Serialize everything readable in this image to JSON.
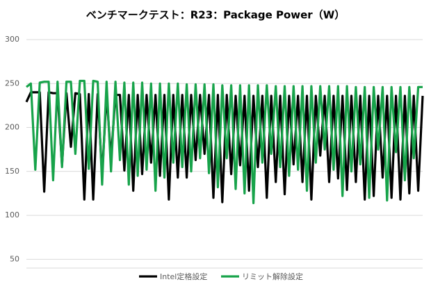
{
  "chart_data": {
    "type": "line",
    "title": "ベンチマークテスト：R23：Package Power（W）",
    "categories": [
      null,
      null,
      null,
      null,
      null,
      null,
      null,
      null,
      null,
      null,
      null,
      null,
      null,
      null,
      null,
      null,
      null,
      null,
      null,
      null,
      null,
      null,
      null,
      null,
      null,
      null,
      null,
      null,
      null,
      null,
      null,
      null,
      null,
      null,
      null,
      null,
      null,
      null,
      null,
      null,
      null,
      null,
      null,
      null,
      null,
      null,
      null,
      null,
      null,
      null,
      null,
      null,
      null,
      null,
      null,
      null,
      null,
      null,
      null,
      null,
      null,
      null,
      null,
      null,
      null,
      null,
      null,
      null,
      null,
      null,
      null,
      null,
      null,
      null,
      null,
      null,
      null,
      null,
      null,
      null,
      null,
      null,
      null,
      null,
      null,
      null,
      null,
      null,
      null,
      null
    ],
    "series": [
      {
        "name": "Intel定格設定",
        "color": "#000000",
        "values": [
          229,
          240,
          240,
          240,
          127,
          240,
          239,
          239,
          157,
          239,
          178,
          239,
          238,
          118,
          238,
          118,
          238,
          145,
          238,
          165,
          237,
          237,
          151,
          237,
          128,
          237,
          147,
          237,
          160,
          237,
          145,
          237,
          118,
          237,
          143,
          237,
          143,
          237,
          163,
          237,
          170,
          237,
          120,
          237,
          115,
          237,
          147,
          236,
          157,
          236,
          128,
          236,
          155,
          236,
          120,
          236,
          138,
          236,
          124,
          236,
          158,
          236,
          138,
          236,
          118,
          236,
          168,
          236,
          138,
          236,
          142,
          236,
          129,
          236,
          138,
          236,
          118,
          236,
          122,
          236,
          143,
          236,
          120,
          236,
          118,
          236,
          125,
          236,
          128,
          236
        ]
      },
      {
        "name": "リミット解除設定",
        "color": "#17a34a",
        "values": [
          246,
          250,
          152,
          251,
          252,
          252,
          140,
          252,
          155,
          252,
          252,
          170,
          253,
          253,
          153,
          253,
          252,
          135,
          252,
          150,
          252,
          163,
          251,
          135,
          251,
          145,
          251,
          152,
          250,
          128,
          250,
          143,
          250,
          160,
          250,
          155,
          249,
          150,
          249,
          165,
          249,
          148,
          249,
          132,
          248,
          165,
          248,
          130,
          248,
          125,
          248,
          114,
          248,
          160,
          248,
          170,
          247,
          155,
          247,
          145,
          247,
          152,
          247,
          128,
          247,
          160,
          247,
          175,
          247,
          152,
          247,
          122,
          247,
          150,
          246,
          158,
          246,
          120,
          246,
          175,
          246,
          117,
          246,
          172,
          246,
          140,
          246,
          165,
          246,
          246
        ]
      }
    ],
    "ylim": [
      40,
      300
    ],
    "yticks": [
      50,
      100,
      150,
      200,
      250,
      300
    ],
    "grid": true,
    "legend": "bottom"
  }
}
